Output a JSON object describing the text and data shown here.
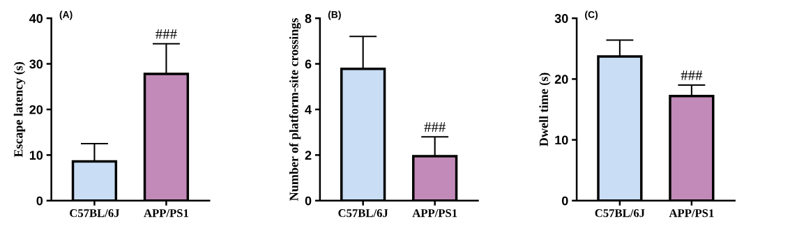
{
  "chart_data": [
    {
      "type": "bar",
      "title": "(A)",
      "ylabel": "Escape latency (s)",
      "categories": [
        "C57BL/6J",
        "APP/PS1"
      ],
      "values": [
        8.6,
        27.8
      ],
      "colors": [
        "#c9def5",
        "#c28ab8"
      ],
      "errors": [
        [
          8.6,
          12.5
        ],
        [
          27.8,
          34.4
        ]
      ],
      "ylim": [
        0,
        40
      ],
      "yticks": [
        0,
        10,
        20,
        30,
        40
      ],
      "annotations": [
        {
          "text": "###",
          "x": "APP/PS1",
          "y": 34.4
        }
      ]
    },
    {
      "type": "bar",
      "title": "(B)",
      "ylabel": "Number of platform-site crossings",
      "categories": [
        "C57BL/6J",
        "APP/PS1"
      ],
      "values": [
        5.78,
        1.95
      ],
      "colors": [
        "#c9def5",
        "#c28ab8"
      ],
      "errors": [
        [
          5.78,
          7.2
        ],
        [
          1.95,
          2.8
        ]
      ],
      "ylim": [
        0,
        8
      ],
      "yticks": [
        0,
        2,
        4,
        6,
        8
      ],
      "annotations": [
        {
          "text": "###",
          "x": "APP/PS1",
          "y": 2.8
        }
      ]
    },
    {
      "type": "bar",
      "title": "(C)",
      "ylabel": "Dwell time (s)",
      "categories": [
        "C57BL/6J",
        "APP/PS1"
      ],
      "values": [
        23.7,
        17.2
      ],
      "colors": [
        "#c9def5",
        "#c28ab8"
      ],
      "errors": [
        [
          23.7,
          26.4
        ],
        [
          17.2,
          19.0
        ]
      ],
      "ylim": [
        0,
        30
      ],
      "yticks": [
        0,
        10,
        20,
        30
      ],
      "annotations": [
        {
          "text": "###",
          "x": "APP/PS1",
          "y": 19.0
        }
      ]
    }
  ]
}
